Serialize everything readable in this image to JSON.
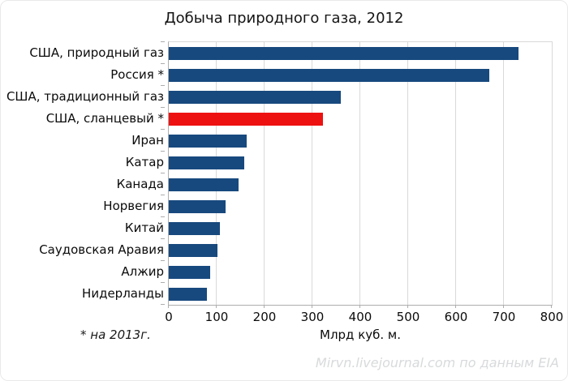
{
  "title": "Добыча природного газа, 2012",
  "footnote": "* на 2013г.",
  "watermark": "Mirvn.livejournal.com по данным EIA",
  "chart_data": {
    "type": "bar",
    "orientation": "horizontal",
    "title": "Добыча природного газа, 2012",
    "categories": [
      "США, природный газ",
      "Россия *",
      "США, традиционный газ",
      "США, сланцевый *",
      "Иран",
      "Катар",
      "Канада",
      "Норвегия",
      "Китай",
      "Саудовская Аравия",
      "Алжир",
      "Нидерланды"
    ],
    "values": [
      730,
      670,
      360,
      322,
      162,
      157,
      145,
      118,
      107,
      101,
      87,
      80
    ],
    "xlabel": "Млрд куб. м.",
    "xlim": [
      0,
      800
    ],
    "xticks": [
      0,
      100,
      200,
      300,
      400,
      500,
      600,
      700,
      800
    ],
    "grid": "vertical",
    "highlight_index": 3,
    "colors": {
      "bar": "#17497E",
      "highlight": "#EE1111",
      "gridline": "#d9d9d9",
      "axis": "#adadad",
      "watermark": "#d8dadc"
    }
  }
}
